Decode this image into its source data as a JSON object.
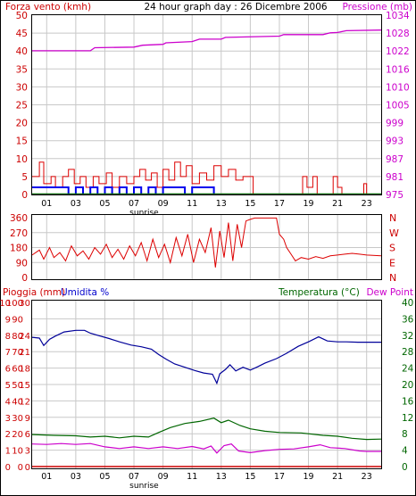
{
  "title": "24 hour graph day : 26 Dicembre 2006",
  "colors": {
    "wind": "#dd0000",
    "gust_blue": "#0000ee",
    "pressure": "#cc00cc",
    "direction": "#dd0000",
    "humidity": "#000099",
    "temperature": "#006600",
    "dewpoint": "#cc00cc",
    "rain": "#cc0000",
    "grid": "#c8c8c8",
    "label_red": "#cc0000",
    "label_green": "#006600",
    "label_blue": "#0000cc"
  },
  "x_tick_labels": [
    "01",
    "03",
    "05",
    "07",
    "09",
    "11",
    "13",
    "15",
    "17",
    "19",
    "21",
    "23"
  ],
  "sunrise_label": "sunrise",
  "sunrise_hour": 7.7,
  "chart_data": [
    {
      "type": "line",
      "panel": "wind_pressure",
      "ylabel_left": "Forza vento (kmh)",
      "ylabel_right": "Pressione (mb)",
      "left_ticks": [
        "50",
        "45",
        "40",
        "35",
        "30",
        "25",
        "20",
        "15",
        "10",
        "5",
        "0"
      ],
      "right_ticks": [
        "1034",
        "1028",
        "1022",
        "1016",
        "1010",
        "1005",
        "999",
        "993",
        "987",
        "981",
        "975"
      ],
      "left_range": [
        0,
        50
      ],
      "right_range": [
        975,
        1034
      ],
      "series": [
        {
          "name": "Pressione",
          "axis": "right",
          "points": [
            [
              0,
              1022.3
            ],
            [
              4,
              1022.3
            ],
            [
              4.3,
              1023.3
            ],
            [
              7,
              1023.5
            ],
            [
              7.6,
              1024.1
            ],
            [
              9,
              1024.4
            ],
            [
              9.2,
              1024.9
            ],
            [
              11,
              1025.3
            ],
            [
              11.5,
              1026.1
            ],
            [
              13,
              1026.1
            ],
            [
              13.3,
              1026.7
            ],
            [
              17,
              1027.1
            ],
            [
              17.3,
              1027.6
            ],
            [
              20,
              1027.6
            ],
            [
              20.5,
              1028.2
            ],
            [
              21,
              1028.3
            ],
            [
              21.6,
              1028.9
            ],
            [
              24,
              1029.1
            ]
          ]
        },
        {
          "name": "Forza vento",
          "axis": "left",
          "points": [
            [
              0,
              5
            ],
            [
              0.5,
              9
            ],
            [
              0.8,
              3
            ],
            [
              1.3,
              5
            ],
            [
              1.6,
              2
            ],
            [
              2.1,
              5
            ],
            [
              2.5,
              7
            ],
            [
              2.9,
              3
            ],
            [
              3.3,
              5
            ],
            [
              3.7,
              2
            ],
            [
              4.2,
              5
            ],
            [
              4.6,
              3
            ],
            [
              5.1,
              6
            ],
            [
              5.5,
              2
            ],
            [
              6,
              5
            ],
            [
              6.5,
              3
            ],
            [
              7,
              5
            ],
            [
              7.4,
              7
            ],
            [
              7.8,
              4
            ],
            [
              8.2,
              6
            ],
            [
              8.6,
              2
            ],
            [
              9,
              7
            ],
            [
              9.4,
              4
            ],
            [
              9.8,
              9
            ],
            [
              10.2,
              5
            ],
            [
              10.6,
              8
            ],
            [
              11,
              3
            ],
            [
              11.5,
              6
            ],
            [
              12,
              4
            ],
            [
              12.5,
              8
            ],
            [
              13,
              5
            ],
            [
              13.5,
              7
            ],
            [
              14,
              4
            ],
            [
              14.5,
              5
            ],
            [
              15,
              5
            ],
            [
              15.2,
              0
            ],
            [
              18.4,
              0
            ],
            [
              18.6,
              5
            ],
            [
              18.9,
              2
            ],
            [
              19.3,
              5
            ],
            [
              19.6,
              0
            ],
            [
              20.5,
              0
            ],
            [
              20.7,
              5
            ],
            [
              21.0,
              2
            ],
            [
              21.3,
              0
            ],
            [
              22.6,
              0
            ],
            [
              22.8,
              3
            ],
            [
              23,
              0
            ],
            [
              24,
              0
            ]
          ]
        },
        {
          "name": "Raffica",
          "axis": "left",
          "points": [
            [
              0,
              2
            ],
            [
              2,
              2
            ],
            [
              2.5,
              0
            ],
            [
              3,
              2
            ],
            [
              3.5,
              0
            ],
            [
              4,
              2
            ],
            [
              4.5,
              0
            ],
            [
              5,
              2
            ],
            [
              5.5,
              0
            ],
            [
              6,
              2
            ],
            [
              6.5,
              0
            ],
            [
              7,
              2
            ],
            [
              7.5,
              0
            ],
            [
              8,
              2
            ],
            [
              8.5,
              0
            ],
            [
              9,
              2
            ],
            [
              10,
              2
            ],
            [
              10.5,
              0
            ],
            [
              11,
              2
            ],
            [
              12,
              2
            ],
            [
              12.5,
              0
            ],
            [
              24,
              0
            ]
          ]
        }
      ]
    },
    {
      "type": "line",
      "panel": "wind_direction",
      "left_ticks": [
        "360",
        "270",
        "180",
        "90",
        "0"
      ],
      "right_ticks": [
        "N",
        "W",
        "S",
        "E",
        "N"
      ],
      "left_range": [
        0,
        360
      ],
      "series": [
        {
          "name": "Direzione vento",
          "points": [
            [
              0,
              135
            ],
            [
              0.5,
              165
            ],
            [
              0.8,
              110
            ],
            [
              1.2,
              180
            ],
            [
              1.5,
              120
            ],
            [
              1.9,
              150
            ],
            [
              2.3,
              100
            ],
            [
              2.7,
              190
            ],
            [
              3.1,
              130
            ],
            [
              3.5,
              160
            ],
            [
              3.9,
              110
            ],
            [
              4.3,
              180
            ],
            [
              4.7,
              140
            ],
            [
              5.1,
              200
            ],
            [
              5.5,
              120
            ],
            [
              5.9,
              170
            ],
            [
              6.3,
              110
            ],
            [
              6.7,
              190
            ],
            [
              7.1,
              130
            ],
            [
              7.5,
              210
            ],
            [
              7.9,
              100
            ],
            [
              8.3,
              230
            ],
            [
              8.7,
              120
            ],
            [
              9.1,
              200
            ],
            [
              9.5,
              90
            ],
            [
              9.9,
              240
            ],
            [
              10.3,
              130
            ],
            [
              10.7,
              260
            ],
            [
              11.1,
              90
            ],
            [
              11.5,
              230
            ],
            [
              11.9,
              150
            ],
            [
              12.3,
              300
            ],
            [
              12.6,
              60
            ],
            [
              12.9,
              280
            ],
            [
              13.2,
              120
            ],
            [
              13.5,
              330
            ],
            [
              13.8,
              100
            ],
            [
              14.1,
              320
            ],
            [
              14.4,
              180
            ],
            [
              14.7,
              340
            ],
            [
              15,
              350
            ],
            [
              15.3,
              358
            ],
            [
              16.8,
              358
            ],
            [
              17,
              260
            ],
            [
              17.3,
              230
            ],
            [
              17.5,
              180
            ],
            [
              17.8,
              140
            ],
            [
              18.1,
              100
            ],
            [
              18.5,
              120
            ],
            [
              19,
              110
            ],
            [
              19.5,
              125
            ],
            [
              20,
              115
            ],
            [
              20.5,
              130
            ],
            [
              21,
              135
            ],
            [
              21.5,
              140
            ],
            [
              22,
              145
            ],
            [
              22.5,
              140
            ],
            [
              23,
              135
            ],
            [
              24,
              130
            ]
          ]
        }
      ]
    },
    {
      "type": "line",
      "panel": "humidity_temperature",
      "ylabel_left_rain": "Pioggia (mm)",
      "ylabel_left_humidity": "Umidita %",
      "ylabel_right_temp": "Temperatura (°C)",
      "ylabel_right_dew": "Dew Point",
      "rain_ticks": [
        "10",
        "9",
        "8",
        "7",
        "6",
        "5",
        "4",
        "3",
        "2",
        "1",
        "0"
      ],
      "humidity_ticks": [
        "100",
        "90",
        "80",
        "70",
        "60",
        "50",
        "40",
        "30",
        "20",
        "10",
        "0"
      ],
      "humidity_ticks_inner": [
        "30",
        "24",
        "21",
        "18",
        "15",
        "12",
        "9",
        "6",
        "3",
        "0"
      ],
      "temp_ticks": [
        "40",
        "36",
        "32",
        "28",
        "24",
        "20",
        "16",
        "12",
        "8",
        "4",
        "0"
      ],
      "right_range": [
        0,
        40
      ],
      "series": [
        {
          "name": "Umidita",
          "axis": "right",
          "points": [
            [
              0,
              31.5
            ],
            [
              0.5,
              31.3
            ],
            [
              0.8,
              29.5
            ],
            [
              1.2,
              31
            ],
            [
              1.6,
              31.8
            ],
            [
              2.2,
              32.8
            ],
            [
              3,
              33.2
            ],
            [
              3.6,
              33.2
            ],
            [
              4,
              32.5
            ],
            [
              4.6,
              31.9
            ],
            [
              5.3,
              31.2
            ],
            [
              6,
              30.4
            ],
            [
              6.8,
              29.6
            ],
            [
              7.5,
              29.2
            ],
            [
              8.2,
              28.6
            ],
            [
              8.7,
              27.3
            ],
            [
              9.2,
              26.2
            ],
            [
              9.8,
              25
            ],
            [
              10.5,
              24.2
            ],
            [
              11.2,
              23.4
            ],
            [
              11.8,
              22.8
            ],
            [
              12.4,
              22.5
            ],
            [
              12.7,
              20.3
            ],
            [
              12.9,
              22.6
            ],
            [
              13.3,
              23.7
            ],
            [
              13.6,
              24.8
            ],
            [
              14,
              23.3
            ],
            [
              14.5,
              24.2
            ],
            [
              15,
              23.5
            ],
            [
              15.5,
              24.3
            ],
            [
              16,
              25.2
            ],
            [
              16.8,
              26.3
            ],
            [
              17.5,
              27.6
            ],
            [
              18.3,
              29.3
            ],
            [
              19,
              30.4
            ],
            [
              19.7,
              31.6
            ],
            [
              20.3,
              30.6
            ],
            [
              21,
              30.4
            ],
            [
              21.6,
              30.4
            ],
            [
              22.4,
              30.3
            ],
            [
              23.2,
              30.3
            ],
            [
              24,
              30.3
            ]
          ]
        },
        {
          "name": "Temperatura",
          "axis": "right",
          "points": [
            [
              0,
              7.8
            ],
            [
              1.5,
              7.6
            ],
            [
              3,
              7.5
            ],
            [
              4,
              7.2
            ],
            [
              5,
              7.4
            ],
            [
              6,
              7
            ],
            [
              7,
              7.4
            ],
            [
              8,
              7.2
            ],
            [
              8.7,
              8.3
            ],
            [
              9.5,
              9.5
            ],
            [
              10.5,
              10.5
            ],
            [
              11.5,
              11
            ],
            [
              12.5,
              11.8
            ],
            [
              13,
              10.7
            ],
            [
              13.5,
              11.3
            ],
            [
              14.3,
              10
            ],
            [
              15,
              9.2
            ],
            [
              16,
              8.6
            ],
            [
              17,
              8.3
            ],
            [
              18.5,
              8.2
            ],
            [
              20,
              7.6
            ],
            [
              21,
              7.4
            ],
            [
              22,
              6.9
            ],
            [
              23,
              6.6
            ],
            [
              24,
              6.7
            ]
          ]
        },
        {
          "name": "Dew Point",
          "axis": "right",
          "points": [
            [
              0,
              5.5
            ],
            [
              1,
              5.4
            ],
            [
              2,
              5.6
            ],
            [
              3,
              5.4
            ],
            [
              4,
              5.6
            ],
            [
              5,
              4.8
            ],
            [
              6,
              4.4
            ],
            [
              7,
              4.8
            ],
            [
              8,
              4.4
            ],
            [
              9,
              4.8
            ],
            [
              10,
              4.4
            ],
            [
              11,
              4.9
            ],
            [
              11.8,
              4.3
            ],
            [
              12.3,
              5
            ],
            [
              12.7,
              3.3
            ],
            [
              13.2,
              5.1
            ],
            [
              13.7,
              5.5
            ],
            [
              14.2,
              3.8
            ],
            [
              15,
              3.4
            ],
            [
              16,
              3.9
            ],
            [
              17,
              4.2
            ],
            [
              18,
              4.3
            ],
            [
              19,
              4.8
            ],
            [
              19.8,
              5.3
            ],
            [
              20.5,
              4.6
            ],
            [
              21.5,
              4.4
            ],
            [
              22.5,
              3.8
            ],
            [
              23,
              3.7
            ],
            [
              24,
              3.7
            ]
          ]
        },
        {
          "name": "Pioggia",
          "axis": "rain",
          "points": [
            [
              0,
              0
            ],
            [
              24,
              0
            ]
          ]
        }
      ]
    }
  ]
}
